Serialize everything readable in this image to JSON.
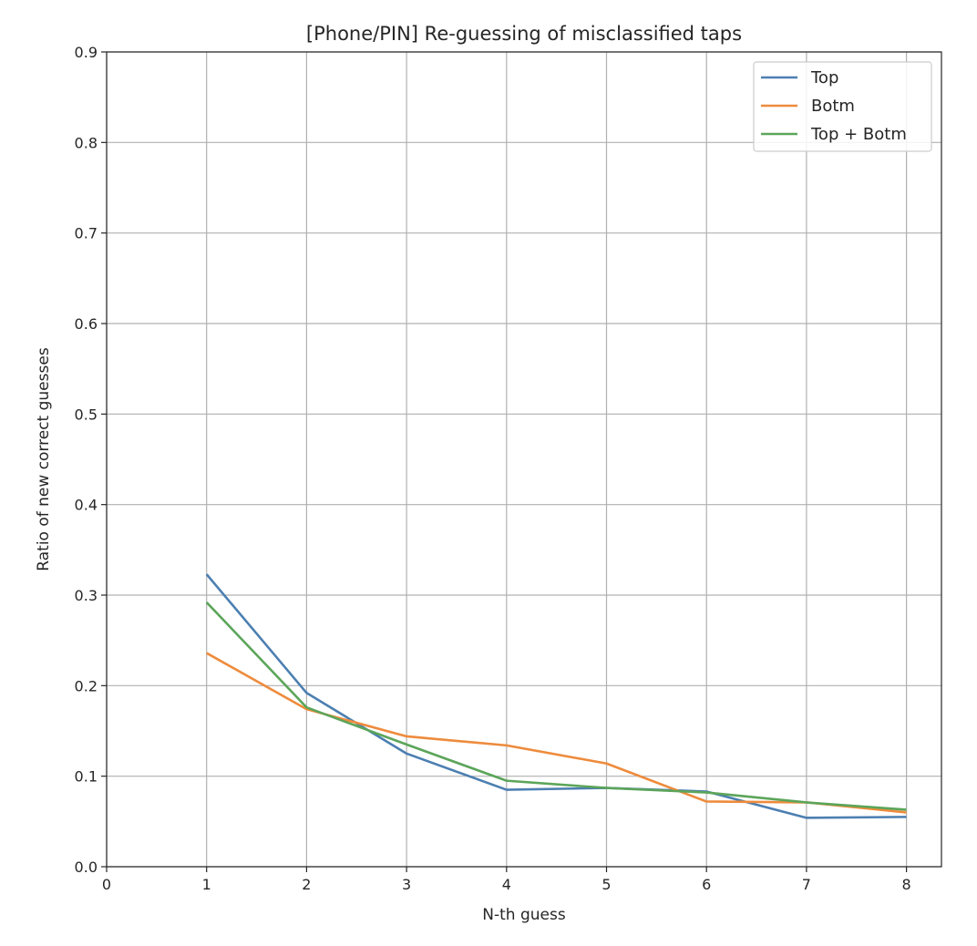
{
  "chart_data": {
    "type": "line",
    "title": "[Phone/PIN] Re-guessing of misclassified taps",
    "xlabel": "N-th guess",
    "ylabel": "Ratio of new correct guesses",
    "xlim": [
      0,
      8.35
    ],
    "ylim": [
      0,
      0.9
    ],
    "x_ticks": [
      0,
      1,
      2,
      3,
      4,
      5,
      6,
      7,
      8
    ],
    "y_ticks": [
      0.0,
      0.1,
      0.2,
      0.3,
      0.4,
      0.5,
      0.6,
      0.7,
      0.8,
      0.9
    ],
    "x_tick_labels": [
      "0",
      "1",
      "2",
      "3",
      "4",
      "5",
      "6",
      "7",
      "8"
    ],
    "y_tick_labels": [
      "0.0",
      "0.1",
      "0.2",
      "0.3",
      "0.4",
      "0.5",
      "0.6",
      "0.7",
      "0.8",
      "0.9"
    ],
    "grid": true,
    "legend_position": "top-right",
    "x": [
      1,
      2,
      3,
      4,
      5,
      6,
      7,
      8
    ],
    "series": [
      {
        "name": "Top",
        "color": "#4c7fb1",
        "values": [
          0.323,
          0.192,
          0.125,
          0.085,
          0.087,
          0.083,
          0.054,
          0.055
        ]
      },
      {
        "name": "Botm",
        "color": "#ee8b3c",
        "values": [
          0.236,
          0.174,
          0.144,
          0.134,
          0.114,
          0.072,
          0.071,
          0.06
        ]
      },
      {
        "name": "Top + Botm",
        "color": "#5ca55a",
        "values": [
          0.292,
          0.176,
          0.135,
          0.095,
          0.087,
          0.082,
          0.071,
          0.063
        ]
      }
    ]
  }
}
